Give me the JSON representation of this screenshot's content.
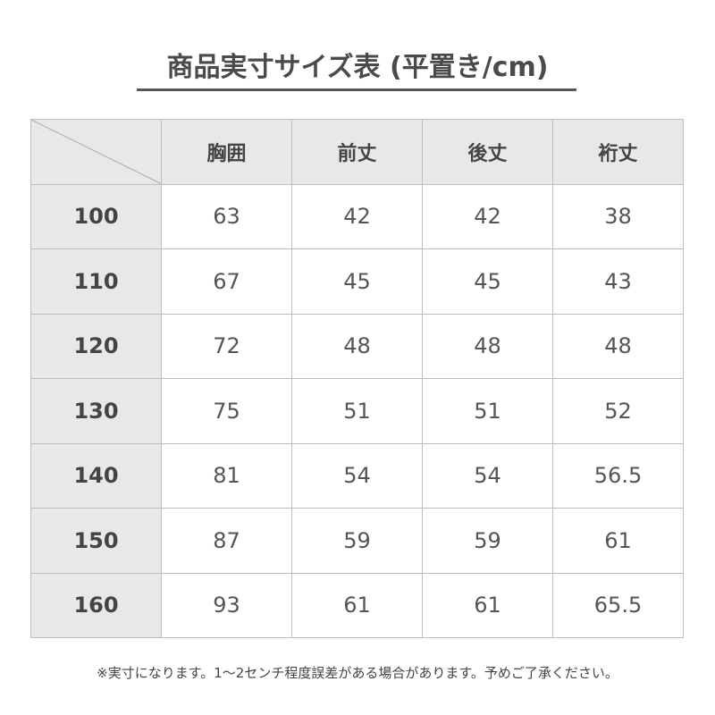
{
  "title": "商品実寸サイズ表 (平置き/cm)",
  "columns": [
    "胸囲",
    "前丈",
    "後丈",
    "裄丈"
  ],
  "rows": [
    {
      "size": "100",
      "values": [
        "63",
        "42",
        "42",
        "38"
      ]
    },
    {
      "size": "110",
      "values": [
        "67",
        "45",
        "45",
        "43"
      ]
    },
    {
      "size": "120",
      "values": [
        "72",
        "48",
        "48",
        "48"
      ]
    },
    {
      "size": "130",
      "values": [
        "75",
        "51",
        "51",
        "52"
      ]
    },
    {
      "size": "140",
      "values": [
        "81",
        "54",
        "54",
        "56.5"
      ]
    },
    {
      "size": "150",
      "values": [
        "87",
        "59",
        "59",
        "61"
      ]
    },
    {
      "size": "160",
      "values": [
        "93",
        "61",
        "61",
        "65.5"
      ]
    }
  ],
  "note": "※実寸になります。1～2センチ程度誤差がある場合があります。予めご了承ください。",
  "colors": {
    "header_bg": "#e8e8e8",
    "border": "#bdbdbd",
    "text": "#444444"
  }
}
